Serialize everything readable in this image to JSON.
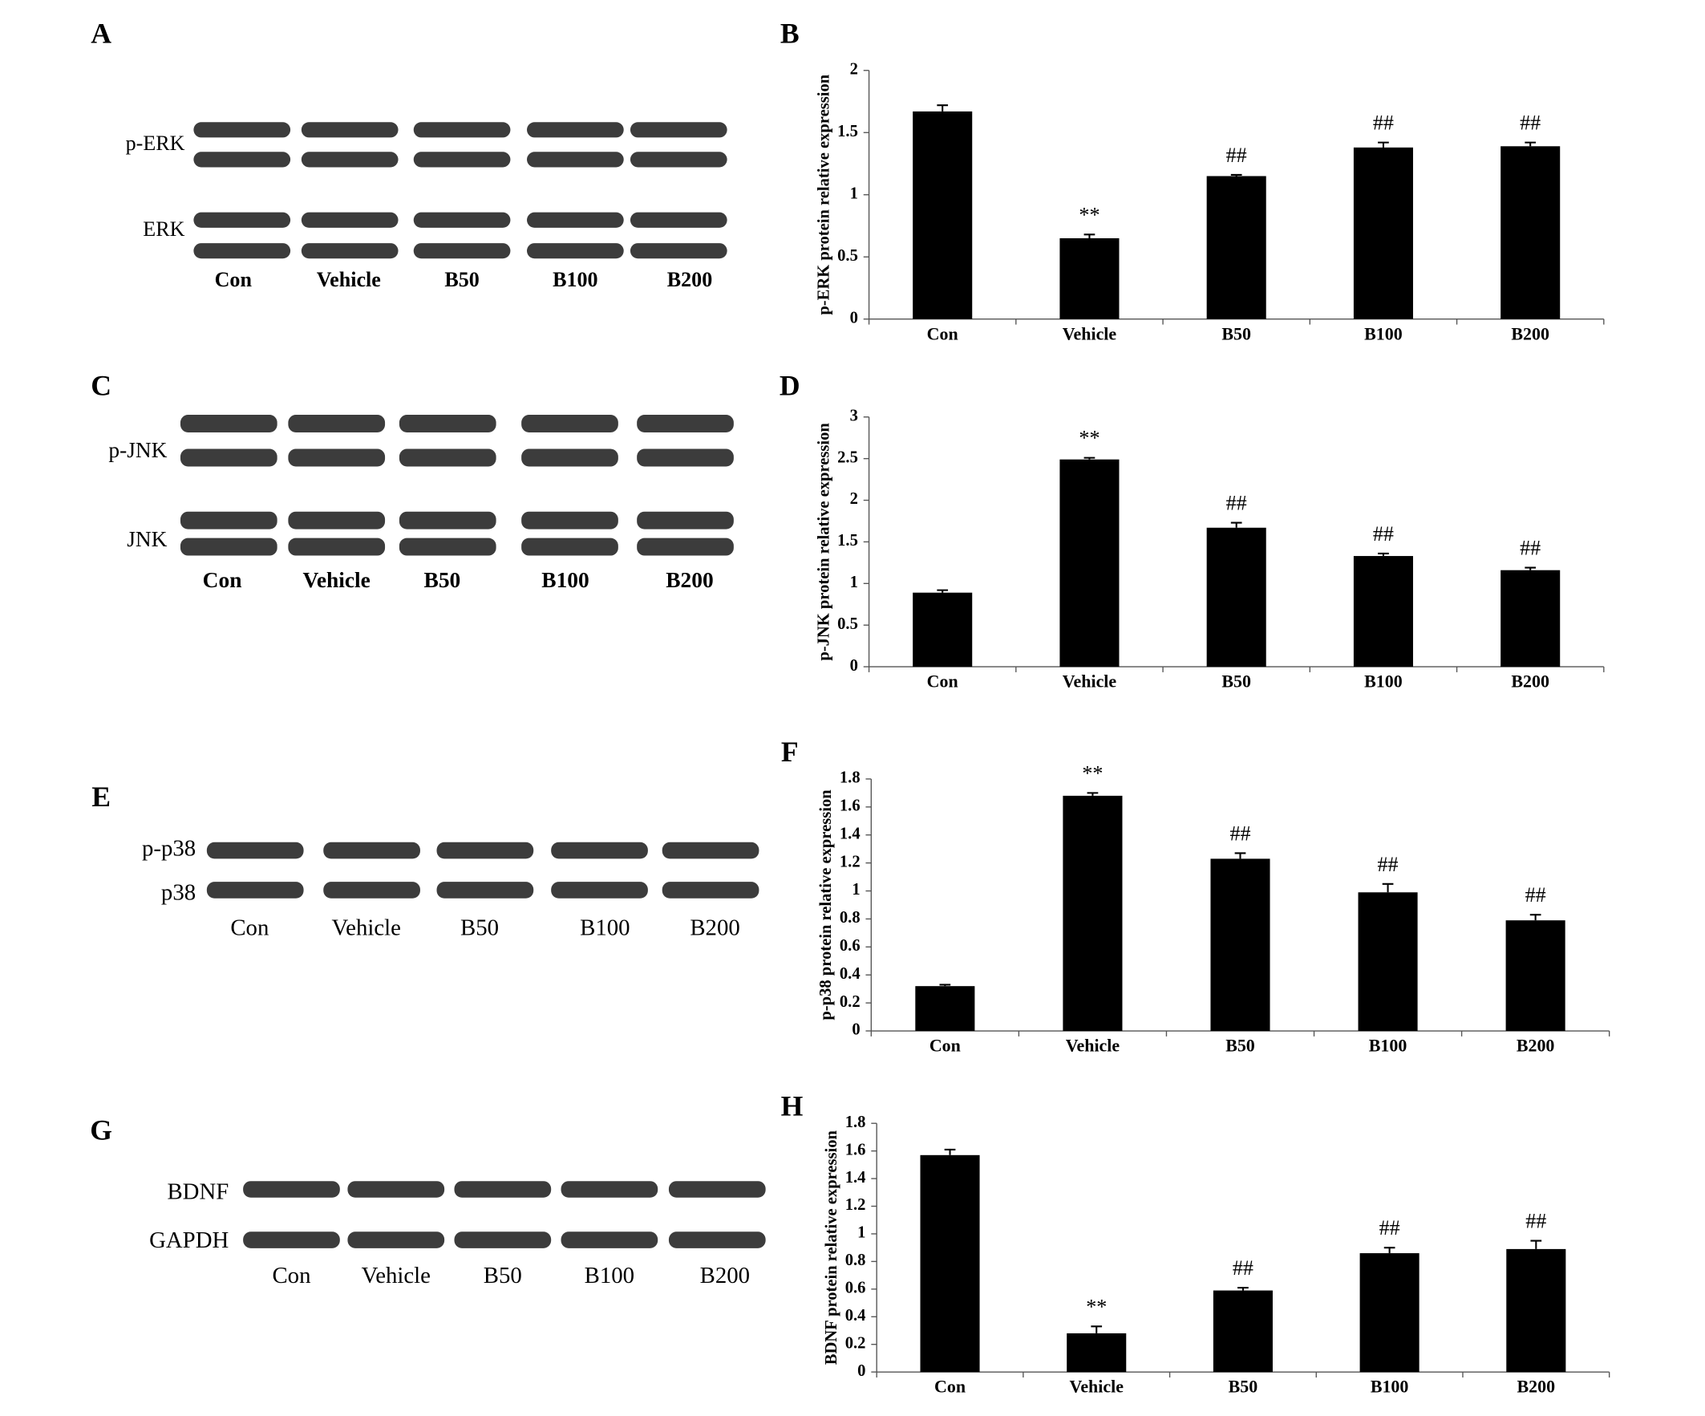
{
  "chart_data": [
    {
      "type": "bar",
      "panel": "B",
      "ylabel": "p-ERK protein relative expression",
      "categories": [
        "Con",
        "Vehicle",
        "B50",
        "B100",
        "B200"
      ],
      "values": [
        1.67,
        0.65,
        1.15,
        1.38,
        1.39
      ],
      "errors": [
        0.05,
        0.03,
        0.01,
        0.04,
        0.03
      ],
      "annotations": [
        null,
        "**",
        "##",
        "##",
        "##"
      ],
      "color": "#000000",
      "ylim": [
        0,
        2
      ],
      "yticks": [
        0,
        0.5,
        1,
        1.5,
        2
      ],
      "grid": false
    },
    {
      "type": "bar",
      "panel": "D",
      "ylabel": "p-JNK protein relative expression",
      "categories": [
        "Con",
        "Vehicle",
        "B50",
        "B100",
        "B200"
      ],
      "values": [
        0.89,
        2.49,
        1.67,
        1.33,
        1.16
      ],
      "errors": [
        0.03,
        0.02,
        0.06,
        0.03,
        0.03
      ],
      "annotations": [
        null,
        "**",
        "##",
        "##",
        "##"
      ],
      "color": "#000000",
      "ylim": [
        0,
        3
      ],
      "yticks": [
        0,
        0.5,
        1,
        1.5,
        2,
        2.5,
        3
      ],
      "grid": false
    },
    {
      "type": "bar",
      "panel": "F",
      "ylabel": "p-p38 protein relative expression",
      "categories": [
        "Con",
        "Vehicle",
        "B50",
        "B100",
        "B200"
      ],
      "values": [
        0.32,
        1.68,
        1.23,
        0.99,
        0.79
      ],
      "errors": [
        0.01,
        0.02,
        0.04,
        0.06,
        0.04
      ],
      "annotations": [
        null,
        "**",
        "##",
        "##",
        "##"
      ],
      "color": "#000000",
      "ylim": [
        0,
        1.8
      ],
      "yticks": [
        0,
        0.2,
        0.4,
        0.6,
        0.8,
        1,
        1.2,
        1.4,
        1.6,
        1.8
      ],
      "grid": false
    },
    {
      "type": "bar",
      "panel": "H",
      "ylabel": "BDNF protein relative expression",
      "categories": [
        "Con",
        "Vehicle",
        "B50",
        "B100",
        "B200"
      ],
      "values": [
        1.57,
        0.28,
        0.59,
        0.86,
        0.89
      ],
      "errors": [
        0.04,
        0.05,
        0.02,
        0.04,
        0.06
      ],
      "annotations": [
        null,
        "**",
        "##",
        "##",
        "##"
      ],
      "color": "#000000",
      "ylim": [
        0,
        1.8
      ],
      "yticks": [
        0,
        0.2,
        0.4,
        0.6,
        0.8,
        1,
        1.2,
        1.4,
        1.6,
        1.8
      ],
      "grid": false
    }
  ],
  "blots": [
    {
      "panel": "A",
      "rows": [
        "p-ERK",
        "ERK"
      ],
      "lanes": [
        "Con",
        "Vehicle",
        "B50",
        "B100",
        "B200"
      ]
    },
    {
      "panel": "C",
      "rows": [
        "p-JNK",
        "JNK"
      ],
      "lanes": [
        "Con",
        "Vehicle",
        "B50",
        "B100",
        "B200"
      ]
    },
    {
      "panel": "E",
      "rows": [
        "p-p38",
        "p38"
      ],
      "lanes": [
        "Con",
        "Vehicle",
        "B50",
        "B100",
        "B200"
      ]
    },
    {
      "panel": "G",
      "rows": [
        "BDNF",
        "GAPDH"
      ],
      "lanes": [
        "Con",
        "Vehicle",
        "B50",
        "B100",
        "B200"
      ]
    }
  ]
}
